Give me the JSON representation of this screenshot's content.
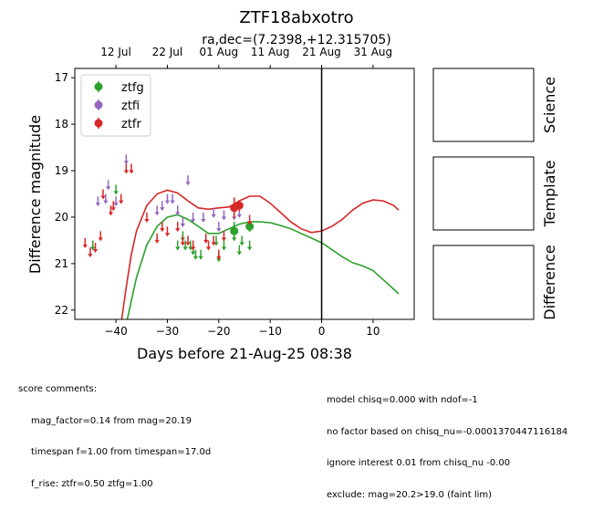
{
  "chart_data": {
    "type": "scatter",
    "title": "ZTF18abxotro",
    "subtitle": "ra,dec=(7.2398,+12.315705)",
    "xlabel": "Days before 21-Aug-25 08:38",
    "ylabel": "Difference magnitude",
    "xlim": [
      -48,
      18
    ],
    "ylim": [
      22.2,
      16.8
    ],
    "x_ticks": [
      -40,
      -30,
      -20,
      -10,
      0,
      10
    ],
    "y_ticks": [
      17,
      18,
      19,
      20,
      21,
      22
    ],
    "top_axis_ticks": [
      {
        "label": "12 Jul",
        "x": -40
      },
      {
        "label": "22 Jul",
        "x": -30
      },
      {
        "label": "01 Aug",
        "x": -20
      },
      {
        "label": "11 Aug",
        "x": -10
      },
      {
        "label": "21 Aug",
        "x": 0
      },
      {
        "label": "31 Aug",
        "x": 10
      }
    ],
    "reference_line_x": 0,
    "legend_position": "top-left",
    "series": [
      {
        "name": "ztfg",
        "color": "#2ca02c",
        "detections": [
          {
            "x": -17,
            "y": 20.3,
            "err": 0.2
          },
          {
            "x": -14,
            "y": 20.2,
            "err": 0.12
          }
        ],
        "upper_limits": [
          {
            "x": -44.5,
            "y": 20.6
          },
          {
            "x": -40,
            "y": 19.4
          },
          {
            "x": -28,
            "y": 20.6
          },
          {
            "x": -27,
            "y": 20.4
          },
          {
            "x": -26.5,
            "y": 20.6
          },
          {
            "x": -25.5,
            "y": 20.6
          },
          {
            "x": -25,
            "y": 20.7
          },
          {
            "x": -24.5,
            "y": 20.8
          },
          {
            "x": -23.5,
            "y": 20.8
          },
          {
            "x": -20.5,
            "y": 20.5
          },
          {
            "x": -20,
            "y": 20.85
          },
          {
            "x": -19,
            "y": 20.6
          },
          {
            "x": -17,
            "y": 20.4
          },
          {
            "x": -16,
            "y": 20.7
          },
          {
            "x": -15.5,
            "y": 20.5
          },
          {
            "x": -14,
            "y": 20.6
          }
        ],
        "model_curve": [
          {
            "x": -38,
            "y": 22.3
          },
          {
            "x": -37,
            "y": 21.8
          },
          {
            "x": -36,
            "y": 21.3
          },
          {
            "x": -34,
            "y": 20.6
          },
          {
            "x": -32,
            "y": 20.2
          },
          {
            "x": -30,
            "y": 20.0
          },
          {
            "x": -28,
            "y": 19.95
          },
          {
            "x": -26,
            "y": 20.05
          },
          {
            "x": -24,
            "y": 20.2
          },
          {
            "x": -22,
            "y": 20.35
          },
          {
            "x": -20,
            "y": 20.35
          },
          {
            "x": -18,
            "y": 20.25
          },
          {
            "x": -16,
            "y": 20.15
          },
          {
            "x": -14,
            "y": 20.1
          },
          {
            "x": -12,
            "y": 20.1
          },
          {
            "x": -10,
            "y": 20.12
          },
          {
            "x": -8,
            "y": 20.18
          },
          {
            "x": -6,
            "y": 20.25
          },
          {
            "x": -4,
            "y": 20.35
          },
          {
            "x": -2,
            "y": 20.45
          },
          {
            "x": 0,
            "y": 20.55
          },
          {
            "x": 2,
            "y": 20.7
          },
          {
            "x": 4,
            "y": 20.85
          },
          {
            "x": 6,
            "y": 20.98
          },
          {
            "x": 8,
            "y": 21.05
          },
          {
            "x": 10,
            "y": 21.15
          },
          {
            "x": 12,
            "y": 21.35
          },
          {
            "x": 14,
            "y": 21.55
          },
          {
            "x": 15,
            "y": 21.65
          }
        ]
      },
      {
        "name": "ztfi",
        "color": "#9467bd",
        "detections": [],
        "upper_limits": [
          {
            "x": -43.5,
            "y": 19.65
          },
          {
            "x": -42,
            "y": 19.6
          },
          {
            "x": -41.5,
            "y": 19.3
          },
          {
            "x": -40,
            "y": 19.65
          },
          {
            "x": -38,
            "y": 18.75
          },
          {
            "x": -32,
            "y": 19.85
          },
          {
            "x": -31,
            "y": 19.75
          },
          {
            "x": -30,
            "y": 19.6
          },
          {
            "x": -29,
            "y": 19.6
          },
          {
            "x": -28,
            "y": 19.85
          },
          {
            "x": -27,
            "y": 20.1
          },
          {
            "x": -26,
            "y": 19.2
          },
          {
            "x": -25,
            "y": 20.0
          },
          {
            "x": -23,
            "y": 20.0
          },
          {
            "x": -21,
            "y": 19.9
          },
          {
            "x": -20,
            "y": 20.2
          },
          {
            "x": -19,
            "y": 19.95
          },
          {
            "x": -17,
            "y": 19.95
          },
          {
            "x": -16,
            "y": 19.9
          }
        ]
      },
      {
        "name": "ztfr",
        "color": "#d62728",
        "detections": [
          {
            "x": -17,
            "y": 19.8,
            "err": 0.22
          },
          {
            "x": -16,
            "y": 19.75,
            "err": 0.12
          }
        ],
        "upper_limits": [
          {
            "x": -46,
            "y": 20.55
          },
          {
            "x": -45,
            "y": 20.75
          },
          {
            "x": -44,
            "y": 20.65
          },
          {
            "x": -43,
            "y": 20.4
          },
          {
            "x": -42.5,
            "y": 19.5
          },
          {
            "x": -41,
            "y": 19.85
          },
          {
            "x": -40.5,
            "y": 19.75
          },
          {
            "x": -39,
            "y": 19.6
          },
          {
            "x": -38,
            "y": 18.95
          },
          {
            "x": -37,
            "y": 18.95
          },
          {
            "x": -34,
            "y": 20.0
          },
          {
            "x": -32,
            "y": 20.45
          },
          {
            "x": -31,
            "y": 20.2
          },
          {
            "x": -30,
            "y": 20.3
          },
          {
            "x": -28,
            "y": 20.2
          },
          {
            "x": -27,
            "y": 20.5
          },
          {
            "x": -26,
            "y": 20.5
          },
          {
            "x": -25,
            "y": 20.6
          },
          {
            "x": -22.5,
            "y": 20.45
          },
          {
            "x": -22,
            "y": 20.6
          },
          {
            "x": -21,
            "y": 20.5
          },
          {
            "x": -20,
            "y": 20.8
          },
          {
            "x": -19,
            "y": 20.4
          },
          {
            "x": -14,
            "y": 20.05
          }
        ],
        "model_curve": [
          {
            "x": -39,
            "y": 22.3
          },
          {
            "x": -38,
            "y": 21.5
          },
          {
            "x": -37,
            "y": 20.8
          },
          {
            "x": -36,
            "y": 20.3
          },
          {
            "x": -34,
            "y": 19.75
          },
          {
            "x": -32,
            "y": 19.5
          },
          {
            "x": -30,
            "y": 19.42
          },
          {
            "x": -28,
            "y": 19.48
          },
          {
            "x": -26,
            "y": 19.65
          },
          {
            "x": -24,
            "y": 19.8
          },
          {
            "x": -22,
            "y": 19.83
          },
          {
            "x": -20,
            "y": 19.8
          },
          {
            "x": -18,
            "y": 19.78
          },
          {
            "x": -16,
            "y": 19.65
          },
          {
            "x": -14,
            "y": 19.55
          },
          {
            "x": -12,
            "y": 19.55
          },
          {
            "x": -10,
            "y": 19.7
          },
          {
            "x": -8,
            "y": 19.9
          },
          {
            "x": -6,
            "y": 20.1
          },
          {
            "x": -4,
            "y": 20.25
          },
          {
            "x": -2,
            "y": 20.33
          },
          {
            "x": 0,
            "y": 20.3
          },
          {
            "x": 2,
            "y": 20.2
          },
          {
            "x": 4,
            "y": 20.05
          },
          {
            "x": 6,
            "y": 19.85
          },
          {
            "x": 8,
            "y": 19.7
          },
          {
            "x": 10,
            "y": 19.63
          },
          {
            "x": 12,
            "y": 19.65
          },
          {
            "x": 14,
            "y": 19.75
          },
          {
            "x": 15,
            "y": 19.85
          }
        ]
      }
    ]
  },
  "side_panels": [
    "Science",
    "Template",
    "Difference"
  ],
  "comments_left": {
    "header": "score comments:",
    "lines": [
      "mag_factor=0.14 from mag=20.19",
      "timespan f=1.00 from timespan=17.0d",
      "f_rise: ztfr=0.50 ztfg=1.00"
    ]
  },
  "comments_right": {
    "lines": [
      "model chisq=0.000 with ndof=-1",
      "no factor based on chisq_nu=-0.0001370447116184",
      "ignore interest 0.01 from chisq_nu -0.00",
      "exclude: mag=20.2>19.0 (faint lim)"
    ]
  }
}
